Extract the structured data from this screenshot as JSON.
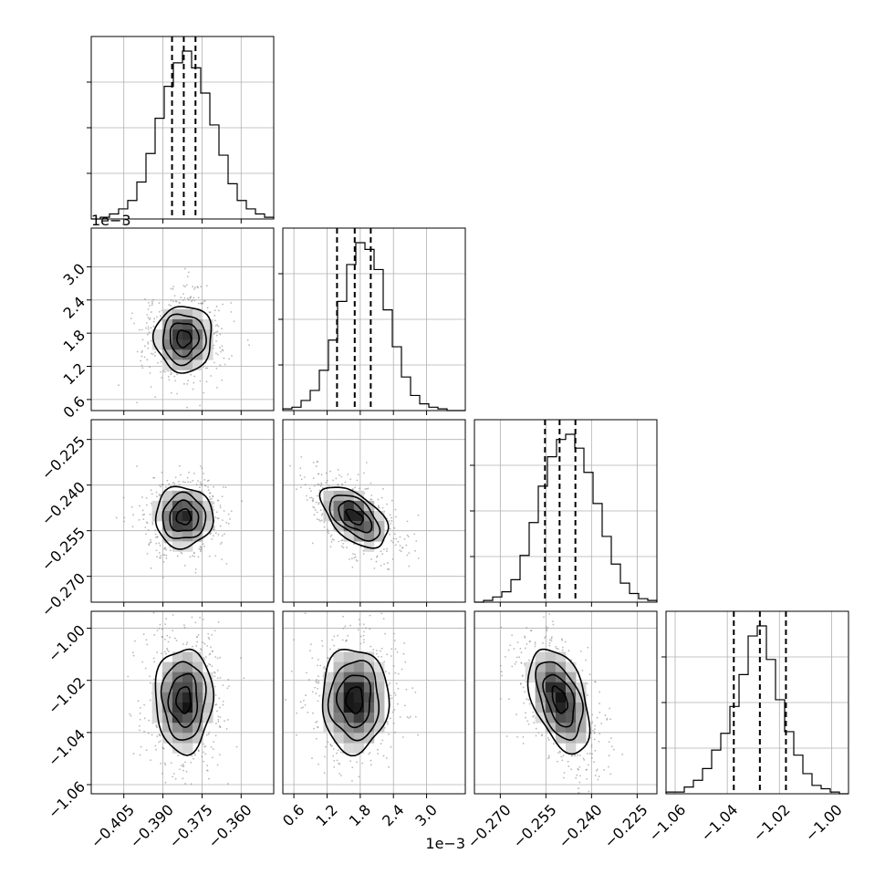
{
  "chart_data": {
    "type": "corner",
    "grid": true,
    "histogram_type": "step",
    "scatter_color": "#808080",
    "contour_color": "#000000",
    "quantile_line_style": "dashed",
    "parameters": [
      {
        "id": "p1",
        "range": [
          -0.4175,
          -0.3475
        ],
        "ticks": [
          -0.405,
          -0.39,
          -0.375,
          -0.36
        ],
        "tick_labels": [
          "−0.405",
          "−0.390",
          "−0.375",
          "−0.360"
        ],
        "offset_text": "",
        "median": -0.382,
        "quantiles": [
          -0.3865,
          -0.382,
          -0.3775
        ],
        "sigma": 0.0055
      },
      {
        "id": "p2",
        "range": [
          0.0004,
          0.0037
        ],
        "ticks": [
          0.0006,
          0.0012,
          0.0018,
          0.0024,
          0.003
        ],
        "tick_labels": [
          "0.6",
          "1.2",
          "1.8",
          "2.4",
          "3.0"
        ],
        "offset_text": "1e−3",
        "median": 0.0017,
        "quantiles": [
          0.00138,
          0.0017,
          0.00199
        ],
        "sigma": 0.0003
      },
      {
        "id": "p3",
        "range": [
          -0.2785,
          -0.2185
        ],
        "ticks": [
          -0.27,
          -0.255,
          -0.24,
          -0.225
        ],
        "tick_labels": [
          "−0.270",
          "−0.255",
          "−0.240",
          "−0.225"
        ],
        "offset_text": "",
        "median": -0.2505,
        "quantiles": [
          -0.2553,
          -0.2505,
          -0.2453
        ],
        "sigma": 0.005
      },
      {
        "id": "p4",
        "range": [
          -1.0635,
          -0.9935
        ],
        "ticks": [
          -1.06,
          -1.04,
          -1.02,
          -1.0
        ],
        "tick_labels": [
          "−1.06",
          "−1.04",
          "−1.02",
          "−1.00"
        ],
        "offset_text": "",
        "median": -1.0275,
        "quantiles": [
          -1.0375,
          -1.0275,
          -1.0175
        ],
        "sigma": 0.01
      }
    ],
    "correlations": {
      "p2_p1": 0.0,
      "p3_p1": 0.0,
      "p3_p2": -0.55,
      "p4_p1": 0.0,
      "p4_p2": 0.0,
      "p4_p3": -0.45
    },
    "histograms": {
      "p1": [
        0,
        1,
        3,
        6,
        11,
        22,
        39,
        60,
        79,
        93,
        100,
        90,
        75,
        56,
        38,
        21,
        11,
        6,
        3,
        1
      ],
      "p2": [
        1,
        2,
        6,
        12,
        24,
        42,
        65,
        87,
        100,
        96,
        84,
        60,
        38,
        20,
        9,
        4,
        2,
        1,
        0,
        0
      ],
      "p3": [
        0,
        1,
        3,
        6,
        13,
        27,
        46,
        67,
        84,
        94,
        97,
        89,
        75,
        57,
        38,
        22,
        11,
        5,
        2,
        1
      ],
      "p4": [
        1,
        1,
        4,
        8,
        15,
        26,
        36,
        52,
        71,
        94,
        100,
        80,
        56,
        37,
        23,
        12,
        5,
        3,
        1,
        0
      ]
    }
  }
}
